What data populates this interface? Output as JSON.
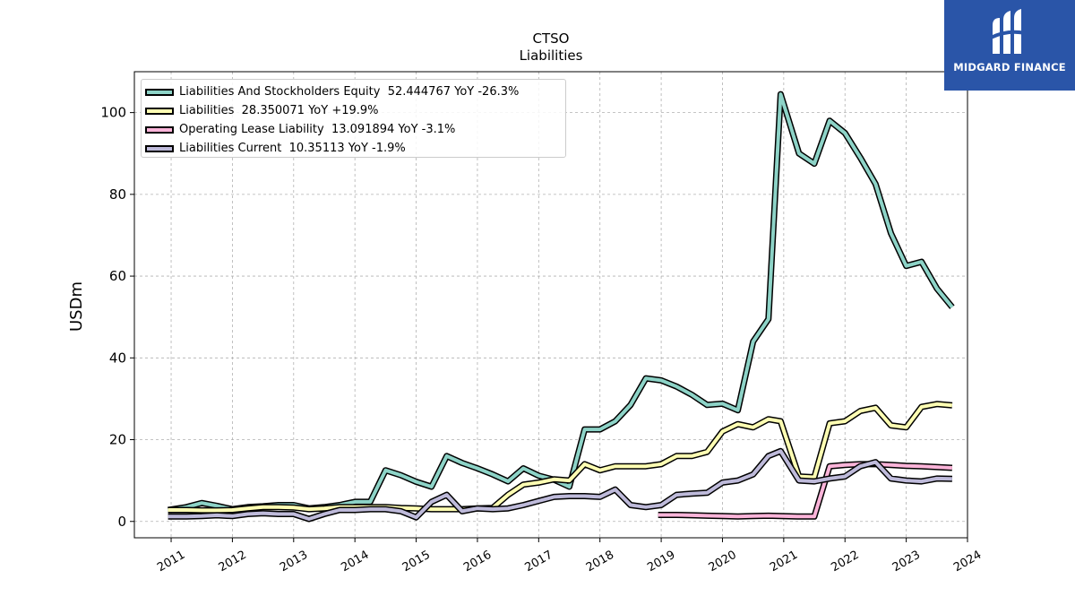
{
  "logo": {
    "text": "MIDGARD FINANCE"
  },
  "chart_data": {
    "type": "line",
    "title": "CTSO",
    "subtitle": "Liabilities",
    "ylabel": "USDm",
    "xlabel": "",
    "ylim": [
      -4,
      110
    ],
    "xlim": [
      2010.4,
      2024.0
    ],
    "yticks": [
      0,
      20,
      40,
      60,
      80,
      100
    ],
    "xticks": [
      "2011",
      "2012",
      "2013",
      "2014",
      "2015",
      "2016",
      "2017",
      "2018",
      "2019",
      "2020",
      "2021",
      "2022",
      "2023",
      "2024"
    ],
    "grid": true,
    "legend_position": "top-left",
    "series": [
      {
        "name": "Liabilities And Stockholders Equity",
        "legend_label": "Liabilities And Stockholders Equity  52.444767 YoY -26.3%",
        "color": "#8dd3c7",
        "points": [
          [
            2010.95,
            2.8
          ],
          [
            2011.25,
            3.5
          ],
          [
            2011.5,
            4.5
          ],
          [
            2011.75,
            3.8
          ],
          [
            2012.0,
            3.0
          ],
          [
            2012.25,
            3.5
          ],
          [
            2012.5,
            3.7
          ],
          [
            2012.75,
            4.0
          ],
          [
            2013.0,
            4.0
          ],
          [
            2013.25,
            3.2
          ],
          [
            2013.5,
            3.5
          ],
          [
            2013.75,
            4.0
          ],
          [
            2014.0,
            4.8
          ],
          [
            2014.25,
            4.8
          ],
          [
            2014.5,
            12.5
          ],
          [
            2014.75,
            11.3
          ],
          [
            2015.0,
            9.7
          ],
          [
            2015.25,
            8.5
          ],
          [
            2015.5,
            16.0
          ],
          [
            2015.75,
            14.3
          ],
          [
            2016.0,
            13.0
          ],
          [
            2016.25,
            11.5
          ],
          [
            2016.5,
            9.8
          ],
          [
            2016.75,
            13.0
          ],
          [
            2017.0,
            11.2
          ],
          [
            2017.25,
            10.2
          ],
          [
            2017.5,
            8.5
          ],
          [
            2017.75,
            22.5
          ],
          [
            2018.0,
            22.5
          ],
          [
            2018.25,
            24.5
          ],
          [
            2018.5,
            28.5
          ],
          [
            2018.75,
            35.0
          ],
          [
            2019.0,
            34.5
          ],
          [
            2019.25,
            33.0
          ],
          [
            2019.5,
            31.0
          ],
          [
            2019.75,
            28.5
          ],
          [
            2020.0,
            28.8
          ],
          [
            2020.25,
            27.2
          ],
          [
            2020.5,
            44.0
          ],
          [
            2020.75,
            49.5
          ],
          [
            2020.95,
            104.5
          ],
          [
            2021.25,
            90.0
          ],
          [
            2021.5,
            87.5
          ],
          [
            2021.75,
            98.0
          ],
          [
            2022.0,
            95.0
          ],
          [
            2022.25,
            89.0
          ],
          [
            2022.5,
            82.5
          ],
          [
            2022.75,
            70.5
          ],
          [
            2023.0,
            62.5
          ],
          [
            2023.25,
            63.5
          ],
          [
            2023.5,
            57.0
          ],
          [
            2023.75,
            52.4
          ]
        ]
      },
      {
        "name": "Liabilities",
        "legend_label": "Liabilities  28.350071 YoY +19.9%",
        "color": "#ffffb3",
        "points": [
          [
            2010.95,
            2.8
          ],
          [
            2011.25,
            2.8
          ],
          [
            2011.5,
            2.7
          ],
          [
            2011.75,
            2.7
          ],
          [
            2012.0,
            2.8
          ],
          [
            2012.25,
            3.2
          ],
          [
            2012.5,
            3.5
          ],
          [
            2012.75,
            3.5
          ],
          [
            2013.0,
            3.4
          ],
          [
            2013.25,
            3.0
          ],
          [
            2013.5,
            3.2
          ],
          [
            2013.75,
            3.5
          ],
          [
            2014.0,
            3.5
          ],
          [
            2014.25,
            3.5
          ],
          [
            2014.5,
            3.5
          ],
          [
            2014.75,
            3.3
          ],
          [
            2015.0,
            3.2
          ],
          [
            2015.25,
            3.0
          ],
          [
            2015.5,
            3.0
          ],
          [
            2015.75,
            3.0
          ],
          [
            2016.0,
            3.2
          ],
          [
            2016.25,
            3.3
          ],
          [
            2016.5,
            6.5
          ],
          [
            2016.75,
            9.0
          ],
          [
            2017.0,
            9.5
          ],
          [
            2017.25,
            10.3
          ],
          [
            2017.5,
            10.0
          ],
          [
            2017.75,
            14.0
          ],
          [
            2018.0,
            12.5
          ],
          [
            2018.25,
            13.5
          ],
          [
            2018.5,
            13.5
          ],
          [
            2018.75,
            13.5
          ],
          [
            2019.0,
            14.0
          ],
          [
            2019.25,
            16.0
          ],
          [
            2019.5,
            16.0
          ],
          [
            2019.75,
            17.0
          ],
          [
            2020.0,
            22.0
          ],
          [
            2020.25,
            23.8
          ],
          [
            2020.5,
            23.0
          ],
          [
            2020.75,
            25.0
          ],
          [
            2020.95,
            24.5
          ],
          [
            2021.25,
            11.0
          ],
          [
            2021.5,
            10.8
          ],
          [
            2021.75,
            24.0
          ],
          [
            2022.0,
            24.5
          ],
          [
            2022.25,
            27.0
          ],
          [
            2022.5,
            27.8
          ],
          [
            2022.75,
            23.5
          ],
          [
            2023.0,
            23.0
          ],
          [
            2023.25,
            28.0
          ],
          [
            2023.5,
            28.7
          ],
          [
            2023.75,
            28.4
          ]
        ]
      },
      {
        "name": "Operating Lease Liability",
        "legend_label": "Operating Lease Liability  13.091894 YoY -3.1%",
        "color": "#fbb4d9",
        "points": [
          [
            2018.95,
            1.6
          ],
          [
            2019.25,
            1.6
          ],
          [
            2019.5,
            1.5
          ],
          [
            2019.75,
            1.4
          ],
          [
            2020.0,
            1.3
          ],
          [
            2020.25,
            1.2
          ],
          [
            2020.5,
            1.3
          ],
          [
            2020.75,
            1.4
          ],
          [
            2020.95,
            1.3
          ],
          [
            2021.25,
            1.2
          ],
          [
            2021.5,
            1.2
          ],
          [
            2021.75,
            13.5
          ],
          [
            2022.0,
            13.8
          ],
          [
            2022.25,
            14.0
          ],
          [
            2022.5,
            14.0
          ],
          [
            2022.75,
            13.8
          ],
          [
            2023.0,
            13.6
          ],
          [
            2023.25,
            13.5
          ],
          [
            2023.5,
            13.3
          ],
          [
            2023.75,
            13.1
          ]
        ]
      },
      {
        "name": "Liabilities Current",
        "legend_label": "Liabilities Current  10.35113 YoY -1.9%",
        "color": "#bebada",
        "points": [
          [
            2010.95,
            1.2
          ],
          [
            2011.25,
            1.2
          ],
          [
            2011.5,
            1.3
          ],
          [
            2011.75,
            1.5
          ],
          [
            2012.0,
            1.3
          ],
          [
            2012.25,
            1.8
          ],
          [
            2012.5,
            2.0
          ],
          [
            2012.75,
            1.8
          ],
          [
            2013.0,
            1.8
          ],
          [
            2013.25,
            0.6
          ],
          [
            2013.5,
            1.8
          ],
          [
            2013.75,
            2.8
          ],
          [
            2014.0,
            2.8
          ],
          [
            2014.25,
            3.0
          ],
          [
            2014.5,
            3.0
          ],
          [
            2014.75,
            2.5
          ],
          [
            2015.0,
            1.0
          ],
          [
            2015.25,
            4.8
          ],
          [
            2015.5,
            6.5
          ],
          [
            2015.75,
            2.5
          ],
          [
            2016.0,
            3.2
          ],
          [
            2016.25,
            3.0
          ],
          [
            2016.5,
            3.2
          ],
          [
            2016.75,
            4.0
          ],
          [
            2017.0,
            5.0
          ],
          [
            2017.25,
            6.0
          ],
          [
            2017.5,
            6.2
          ],
          [
            2017.75,
            6.2
          ],
          [
            2018.0,
            6.0
          ],
          [
            2018.25,
            7.8
          ],
          [
            2018.5,
            4.0
          ],
          [
            2018.75,
            3.5
          ],
          [
            2019.0,
            4.0
          ],
          [
            2019.25,
            6.5
          ],
          [
            2019.5,
            6.8
          ],
          [
            2019.75,
            7.0
          ],
          [
            2020.0,
            9.5
          ],
          [
            2020.25,
            10.0
          ],
          [
            2020.5,
            11.5
          ],
          [
            2020.75,
            16.0
          ],
          [
            2020.95,
            17.2
          ],
          [
            2021.25,
            10.0
          ],
          [
            2021.5,
            9.8
          ],
          [
            2021.75,
            10.5
          ],
          [
            2022.0,
            11.0
          ],
          [
            2022.25,
            13.5
          ],
          [
            2022.5,
            14.5
          ],
          [
            2022.75,
            10.5
          ],
          [
            2023.0,
            10.0
          ],
          [
            2023.25,
            9.8
          ],
          [
            2023.5,
            10.5
          ],
          [
            2023.75,
            10.4
          ]
        ]
      }
    ]
  }
}
